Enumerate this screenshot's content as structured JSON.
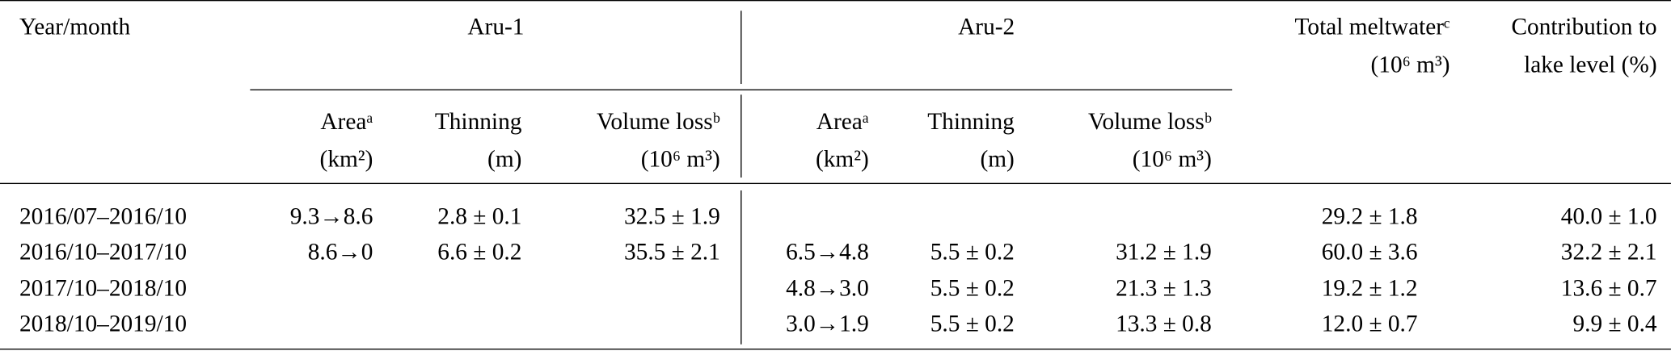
{
  "table": {
    "header": {
      "year": "Year/month",
      "groups": [
        "Aru-1",
        "Aru-2"
      ],
      "total": [
        "Total meltwaterᶜ",
        "(10⁶ m³)"
      ],
      "contribution": [
        "Contribution to",
        "lake level (%)"
      ],
      "subcolumns": [
        [
          "Areaᵃ",
          "(km²)"
        ],
        [
          "Thinning",
          "(m)"
        ],
        [
          "Volume lossᵇ",
          "(10⁶ m³)"
        ],
        [
          "Areaᵃ",
          "(km²)"
        ],
        [
          "Thinning",
          "(m)"
        ],
        [
          "Volume lossᵇ",
          "(10⁶ m³)"
        ]
      ]
    },
    "rows": [
      [
        "2016/07–2016/10",
        "9.3→8.6",
        "2.8 ± 0.1",
        "32.5 ± 1.9",
        null,
        null,
        null,
        "29.2 ± 1.8",
        "40.0 ± 1.0"
      ],
      [
        "2016/10–2017/10",
        "8.6→0",
        "6.6 ± 0.2",
        "35.5 ± 2.1",
        "6.5→4.8",
        "5.5 ± 0.2",
        "31.2 ± 1.9",
        "60.0 ± 3.6",
        "32.2 ± 2.1"
      ],
      [
        "2017/10–2018/10",
        null,
        null,
        null,
        "4.8→3.0",
        "5.5 ± 0.2",
        "21.3 ± 1.3",
        "19.2 ± 1.2",
        "13.6 ± 0.7"
      ],
      [
        "2018/10–2019/10",
        null,
        null,
        null,
        "3.0→1.9",
        "5.5 ± 0.2",
        "13.3 ± 0.8",
        "12.0 ± 0.7",
        "9.9 ± 0.4"
      ]
    ]
  }
}
